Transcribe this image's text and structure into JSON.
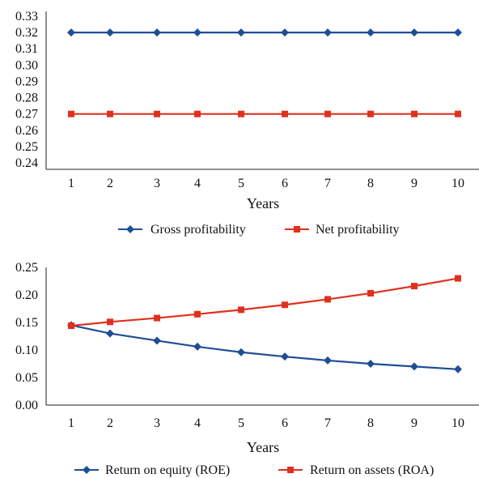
{
  "chart_data": [
    {
      "type": "line",
      "x": [
        1,
        2,
        3,
        4,
        5,
        6,
        7,
        8,
        9,
        10
      ],
      "ylim": [
        0.24,
        0.33
      ],
      "y_ticks": [
        "0.24",
        "0.25",
        "0.26",
        "0.27",
        "0.28",
        "0.29",
        "0.30",
        "0.31",
        "0.32",
        "0.33"
      ],
      "xlabel": "Years",
      "ylabel": "",
      "grid": false,
      "legend": "bottom",
      "series": [
        {
          "name": "Gross profitability",
          "values": [
            0.32,
            0.32,
            0.32,
            0.32,
            0.32,
            0.32,
            0.32,
            0.32,
            0.32,
            0.32
          ],
          "color": "#1f4e96",
          "marker": "diamond"
        },
        {
          "name": "Net profitability",
          "values": [
            0.27,
            0.27,
            0.27,
            0.27,
            0.27,
            0.27,
            0.27,
            0.27,
            0.27,
            0.27
          ],
          "color": "#e0301e",
          "marker": "square"
        }
      ]
    },
    {
      "type": "line",
      "x": [
        1,
        2,
        3,
        4,
        5,
        6,
        7,
        8,
        9,
        10
      ],
      "ylim": [
        0.0,
        0.25
      ],
      "y_ticks": [
        "0.00",
        "0.05",
        "0.10",
        "0.15",
        "0.20",
        "0.25"
      ],
      "xlabel": "Years",
      "ylabel": "",
      "grid": false,
      "legend": "bottom",
      "series": [
        {
          "name": "Return on equity (ROE)",
          "values": [
            0.145,
            0.13,
            0.117,
            0.106,
            0.096,
            0.088,
            0.081,
            0.075,
            0.07,
            0.065
          ],
          "color": "#1f4e96",
          "marker": "diamond"
        },
        {
          "name": "Return on assets (ROA)",
          "values": [
            0.144,
            0.151,
            0.158,
            0.165,
            0.173,
            0.182,
            0.192,
            0.203,
            0.216,
            0.23
          ],
          "color": "#e0301e",
          "marker": "square"
        }
      ]
    }
  ]
}
